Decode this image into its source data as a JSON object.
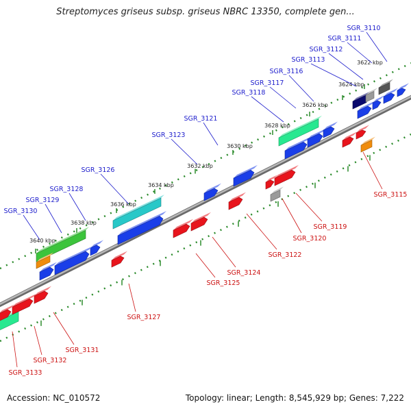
{
  "title": "Streptomyces griseus subsp. griseus NBRC 13350, complete gen...",
  "accession_label": "Accession: NC_010572",
  "summary_label": "Topology: linear; Length: 8,545,929 bp; Genes: 7,222",
  "colors": {
    "forward_label": "#1c1ccc",
    "reverse_label": "#cc1111",
    "forward_gene": "#1a3ee8",
    "reverse_gene": "#e8141c",
    "dark_navy_gene": "#0a0a6e",
    "grey_gene": "#9a9a9a",
    "dark_grey_gene": "#555555",
    "orange_gene": "#f08c0c",
    "cyan_feature": "#28c8c8",
    "green_feature": "#3cc43c",
    "spring_green_feature": "#28e890",
    "backbone": "#888888",
    "scale_ticks": "#2a8a2a"
  },
  "scale_labels": [
    "3622 kbp",
    "3624 kbp",
    "3626 kbp",
    "3628 kbp",
    "3630 kbp",
    "3632 kbp",
    "3634 kbp",
    "3636 kbp",
    "3638 kbp",
    "3640 kbp"
  ],
  "forward_genes": [
    "SGR_3110",
    "SGR_3111",
    "SGR_3112",
    "SGR_3113",
    "SGR_3116",
    "SGR_3117",
    "SGR_3118",
    "SGR_3121",
    "SGR_3123",
    "SGR_3126",
    "SGR_3128",
    "SGR_3129",
    "SGR_3130"
  ],
  "reverse_genes": [
    "SGR_3115",
    "SGR_3119",
    "SGR_3120",
    "SGR_3122",
    "SGR_3124",
    "SGR_3125",
    "SGR_3127",
    "SGR_3131",
    "SGR_3132",
    "SGR_3133"
  ]
}
